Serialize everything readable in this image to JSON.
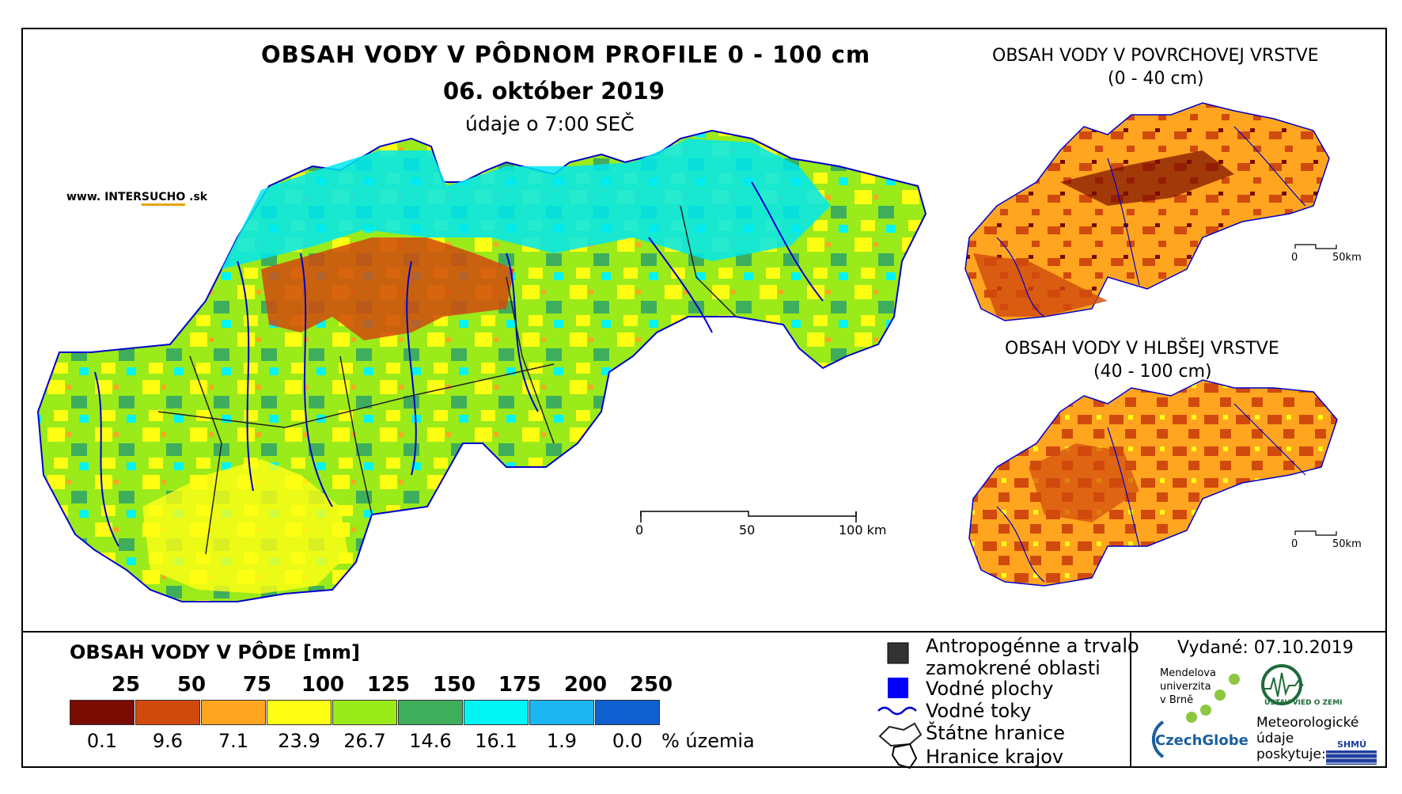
{
  "main": {
    "title": "OBSAH VODY V PÔDNOM PROFILE 0 - 100 cm",
    "date": "06. október 2019",
    "time": "údaje o 7:00 SEČ",
    "site_prefix": "www. INTER",
    "site_mid": "SUCHO",
    "site_suffix": " .sk",
    "scale": {
      "l0": "0",
      "l1": "50",
      "l2": "100 km"
    }
  },
  "inset_top": {
    "title": "OBSAH VODY V POVRCHOVEJ VRSTVE",
    "subtitle": "(0 - 40 cm)",
    "scale": {
      "l0": "0",
      "l1": "50km"
    }
  },
  "inset_bottom": {
    "title": "OBSAH VODY V HLBŠEJ VRSTVE",
    "subtitle": "(40 - 100 cm)",
    "scale": {
      "l0": "0",
      "l1": "50km"
    }
  },
  "legend": {
    "title": "OBSAH VODY V PÔDE [mm]",
    "unit_label": "% územia",
    "bins": [
      {
        "upper": "25",
        "color": "#7a0b00",
        "pct": "0.1"
      },
      {
        "upper": "50",
        "color": "#d14a0d",
        "pct": "9.6"
      },
      {
        "upper": "75",
        "color": "#ffa520",
        "pct": "7.1"
      },
      {
        "upper": "100",
        "color": "#ffff14",
        "pct": "23.9"
      },
      {
        "upper": "125",
        "color": "#9bea1a",
        "pct": "26.7"
      },
      {
        "upper": "150",
        "color": "#3fae5c",
        "pct": "14.6"
      },
      {
        "upper": "175",
        "color": "#00f5f5",
        "pct": "16.1"
      },
      {
        "upper": "200",
        "color": "#1cb6f0",
        "pct": "1.9"
      },
      {
        "upper": "250",
        "color": "#0f5fcf",
        "pct": "0.0"
      }
    ]
  },
  "map_legend": {
    "anthropogenic": "Antropogénne a trvalo",
    "anthropogenic2": "zamokrené oblasti",
    "water_bodies": "Vodné plochy",
    "streams": "Vodné toky",
    "state_border": "Štátne hranice",
    "region_border": "Hranice krajov",
    "colors": {
      "anthropogenic": "#333333",
      "water_bodies": "#0000ff",
      "streams": "#0000cc"
    }
  },
  "issued": "Vydané: 07.10.2019",
  "logos": {
    "mendel": [
      "Mendelova",
      "univerzita",
      "v Brně"
    ],
    "czechglobe": "CzechGlobe",
    "uvz": "ÚSTAV VIED O ZEMI",
    "meteo": "Meteorologické údaje poskytuje:",
    "shmu": "SHMÚ"
  }
}
